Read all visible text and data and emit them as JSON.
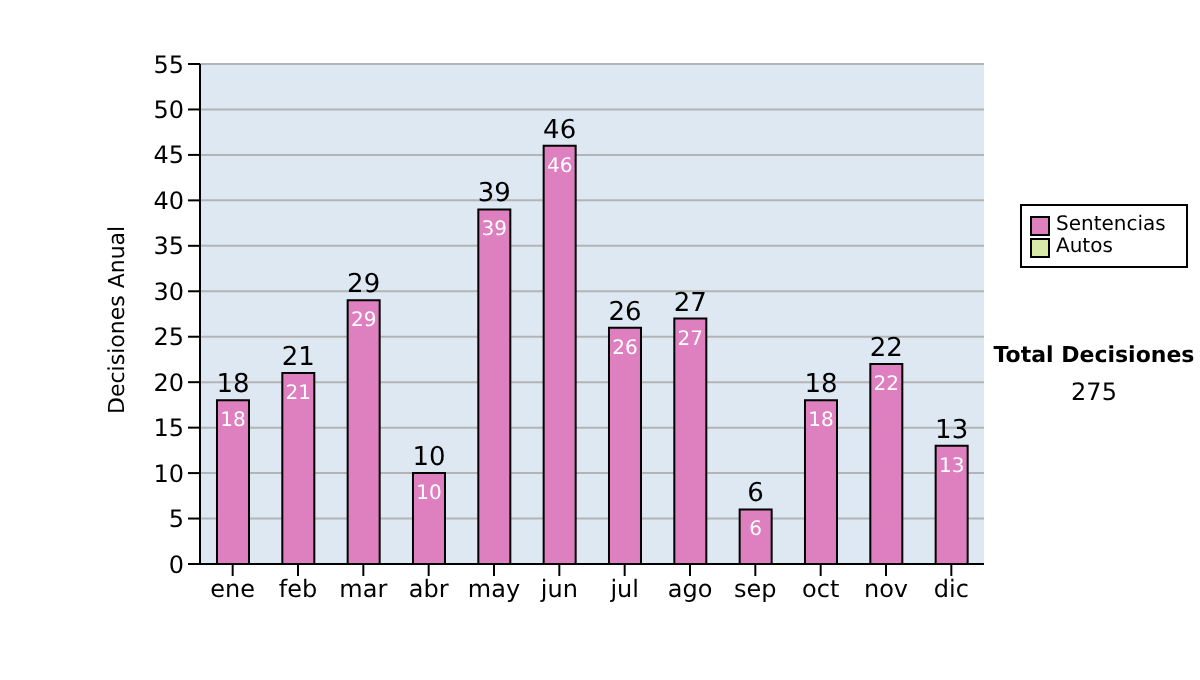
{
  "chart_data": {
    "type": "bar",
    "ylabel": "Decisiones Anual",
    "categories": [
      "ene",
      "feb",
      "mar",
      "abr",
      "may",
      "jun",
      "jul",
      "ago",
      "sep",
      "oct",
      "nov",
      "dic"
    ],
    "series": [
      {
        "name": "Sentencias",
        "color": "#de80c0",
        "values": [
          18,
          21,
          29,
          10,
          39,
          46,
          26,
          27,
          6,
          18,
          22,
          13
        ],
        "value_labels": [
          "18",
          "21",
          "29",
          "10",
          "39",
          "46",
          "26",
          "27",
          "6",
          "18",
          "22",
          "13"
        ]
      },
      {
        "name": "Autos",
        "color": "#d8eaa8",
        "values": [
          0,
          0,
          0,
          0,
          0,
          0,
          0,
          0,
          0,
          0,
          0,
          0
        ],
        "value_labels": [
          null,
          null,
          null,
          null,
          null,
          null,
          null,
          null,
          null,
          null,
          null,
          null
        ]
      }
    ],
    "stacked": true,
    "totals": [
      "18",
      "21",
      "29",
      "10",
      "39",
      "46",
      "26",
      "27",
      "6",
      "18",
      "22",
      "13"
    ],
    "ylim": [
      0,
      55
    ],
    "yticks": [
      0,
      5,
      10,
      15,
      20,
      25,
      30,
      35,
      40,
      45,
      50,
      55
    ],
    "grid": "y",
    "legend": "right",
    "annotations": [
      "Total Decisiones",
      "275"
    ]
  }
}
